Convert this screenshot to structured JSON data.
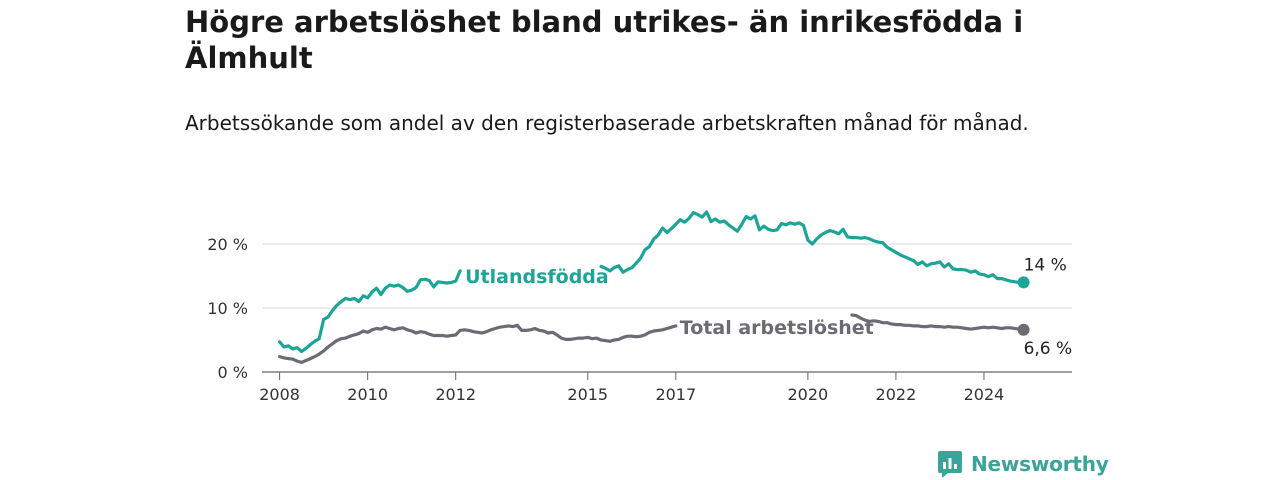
{
  "title": "Högre arbetslöshet bland utrikes- än inrikesfödda i Älmhult",
  "subtitle": "Arbetssökande som andel av den registerbaserade arbetskraften månad för månad.",
  "brand": {
    "name": "Newsworthy",
    "color": "#3aa39a"
  },
  "chart_data": {
    "type": "line",
    "y_ticks": [
      {
        "value": 0,
        "label": "0 %"
      },
      {
        "value": 10,
        "label": "10 %"
      },
      {
        "value": 20,
        "label": "20 %"
      }
    ],
    "x_ticks": [
      {
        "value": 2008,
        "label": "2008"
      },
      {
        "value": 2010,
        "label": "2010"
      },
      {
        "value": 2012,
        "label": "2012"
      },
      {
        "value": 2015,
        "label": "2015"
      },
      {
        "value": 2017,
        "label": "2017"
      },
      {
        "value": 2020,
        "label": "2020"
      },
      {
        "value": 2022,
        "label": "2022"
      },
      {
        "value": 2024,
        "label": "2024"
      }
    ],
    "xlim": [
      2007.6,
      2026.0
    ],
    "ylim": [
      0,
      20
    ],
    "grid": true,
    "series": [
      {
        "name": "Utlandsfödda",
        "color": "#1ba597",
        "end_label": "14 %",
        "points": [
          [
            2008.0,
            4.7
          ],
          [
            2008.1,
            3.9
          ],
          [
            2008.2,
            4.1
          ],
          [
            2008.3,
            3.6
          ],
          [
            2008.4,
            3.8
          ],
          [
            2008.5,
            3.2
          ],
          [
            2008.6,
            3.7
          ],
          [
            2008.7,
            4.3
          ],
          [
            2008.8,
            4.8
          ],
          [
            2008.9,
            5.2
          ],
          [
            2009.0,
            8.2
          ],
          [
            2009.1,
            8.6
          ],
          [
            2009.2,
            9.6
          ],
          [
            2009.3,
            10.4
          ],
          [
            2009.4,
            11.0
          ],
          [
            2009.5,
            11.5
          ],
          [
            2009.6,
            11.3
          ],
          [
            2009.7,
            11.5
          ],
          [
            2009.8,
            11.0
          ],
          [
            2009.9,
            11.9
          ],
          [
            2010.0,
            11.6
          ],
          [
            2010.1,
            12.5
          ],
          [
            2010.2,
            13.1
          ],
          [
            2010.3,
            12.1
          ],
          [
            2010.4,
            13.1
          ],
          [
            2010.5,
            13.6
          ],
          [
            2010.6,
            13.4
          ],
          [
            2010.7,
            13.6
          ],
          [
            2010.8,
            13.2
          ],
          [
            2010.9,
            12.6
          ],
          [
            2011.0,
            12.8
          ],
          [
            2011.1,
            13.2
          ],
          [
            2011.2,
            14.4
          ],
          [
            2011.3,
            14.5
          ],
          [
            2011.4,
            14.3
          ],
          [
            2011.5,
            13.3
          ],
          [
            2011.6,
            14.1
          ],
          [
            2011.7,
            14.0
          ],
          [
            2011.8,
            13.9
          ],
          [
            2011.9,
            14.0
          ],
          [
            2012.0,
            14.2
          ],
          [
            2012.1,
            15.8
          ],
          [
            2015.3,
            16.5
          ],
          [
            2015.4,
            16.2
          ],
          [
            2015.5,
            15.8
          ],
          [
            2015.6,
            16.3
          ],
          [
            2015.7,
            16.6
          ],
          [
            2015.8,
            15.6
          ],
          [
            2015.9,
            16.0
          ],
          [
            2016.0,
            16.3
          ],
          [
            2016.1,
            17.0
          ],
          [
            2016.2,
            17.8
          ],
          [
            2016.3,
            19.1
          ],
          [
            2016.4,
            19.6
          ],
          [
            2016.5,
            20.8
          ],
          [
            2016.6,
            21.4
          ],
          [
            2016.7,
            22.5
          ],
          [
            2016.8,
            21.8
          ],
          [
            2016.9,
            22.4
          ],
          [
            2017.0,
            23.1
          ],
          [
            2017.1,
            23.8
          ],
          [
            2017.2,
            23.4
          ],
          [
            2017.3,
            24.0
          ],
          [
            2017.4,
            24.9
          ],
          [
            2017.5,
            24.6
          ],
          [
            2017.6,
            24.2
          ],
          [
            2017.7,
            25.0
          ],
          [
            2017.8,
            23.5
          ],
          [
            2017.9,
            23.9
          ],
          [
            2018.0,
            23.4
          ],
          [
            2018.1,
            23.6
          ],
          [
            2018.2,
            23.0
          ],
          [
            2018.3,
            22.5
          ],
          [
            2018.4,
            22.0
          ],
          [
            2018.5,
            23.1
          ],
          [
            2018.6,
            24.3
          ],
          [
            2018.7,
            23.9
          ],
          [
            2018.8,
            24.4
          ],
          [
            2018.9,
            22.2
          ],
          [
            2019.0,
            22.8
          ],
          [
            2019.1,
            22.3
          ],
          [
            2019.2,
            22.1
          ],
          [
            2019.3,
            22.2
          ],
          [
            2019.4,
            23.2
          ],
          [
            2019.5,
            23.0
          ],
          [
            2019.6,
            23.3
          ],
          [
            2019.7,
            23.1
          ],
          [
            2019.8,
            23.3
          ],
          [
            2019.9,
            22.9
          ],
          [
            2020.0,
            20.6
          ],
          [
            2020.1,
            20.0
          ],
          [
            2020.2,
            20.8
          ],
          [
            2020.3,
            21.4
          ],
          [
            2020.4,
            21.8
          ],
          [
            2020.5,
            22.1
          ],
          [
            2020.6,
            21.9
          ],
          [
            2020.7,
            21.6
          ],
          [
            2020.8,
            22.3
          ],
          [
            2020.9,
            21.1
          ],
          [
            2021.0,
            21.0
          ],
          [
            2021.1,
            21.0
          ],
          [
            2021.2,
            20.9
          ],
          [
            2021.3,
            21.0
          ],
          [
            2021.4,
            20.8
          ],
          [
            2021.5,
            20.5
          ],
          [
            2021.6,
            20.3
          ],
          [
            2021.7,
            20.2
          ],
          [
            2021.8,
            19.5
          ],
          [
            2021.9,
            19.1
          ],
          [
            2022.0,
            18.7
          ],
          [
            2022.1,
            18.3
          ],
          [
            2022.2,
            18.0
          ],
          [
            2022.3,
            17.7
          ],
          [
            2022.4,
            17.4
          ],
          [
            2022.5,
            16.8
          ],
          [
            2022.6,
            17.2
          ],
          [
            2022.7,
            16.6
          ],
          [
            2022.8,
            16.9
          ],
          [
            2022.9,
            17.0
          ],
          [
            2023.0,
            17.2
          ],
          [
            2023.1,
            16.4
          ],
          [
            2023.2,
            16.9
          ],
          [
            2023.3,
            16.1
          ],
          [
            2023.4,
            16.0
          ],
          [
            2023.5,
            16.0
          ],
          [
            2023.6,
            15.9
          ],
          [
            2023.7,
            15.6
          ],
          [
            2023.8,
            15.8
          ],
          [
            2023.9,
            15.3
          ],
          [
            2024.0,
            15.2
          ],
          [
            2024.1,
            14.9
          ],
          [
            2024.2,
            15.2
          ],
          [
            2024.3,
            14.6
          ],
          [
            2024.4,
            14.6
          ],
          [
            2024.5,
            14.4
          ],
          [
            2024.6,
            14.2
          ],
          [
            2024.7,
            14.1
          ],
          [
            2024.8,
            14.0
          ],
          [
            2024.9,
            14.0
          ]
        ]
      },
      {
        "name": "Total arbetslöshet",
        "color": "#6c6a72",
        "end_label": "6,6 %",
        "points": [
          [
            2008.0,
            2.4
          ],
          [
            2008.1,
            2.2
          ],
          [
            2008.2,
            2.1
          ],
          [
            2008.3,
            2.0
          ],
          [
            2008.4,
            1.7
          ],
          [
            2008.5,
            1.5
          ],
          [
            2008.6,
            1.8
          ],
          [
            2008.7,
            2.1
          ],
          [
            2008.8,
            2.4
          ],
          [
            2008.9,
            2.8
          ],
          [
            2009.0,
            3.3
          ],
          [
            2009.1,
            3.9
          ],
          [
            2009.2,
            4.4
          ],
          [
            2009.3,
            4.9
          ],
          [
            2009.4,
            5.2
          ],
          [
            2009.5,
            5.3
          ],
          [
            2009.6,
            5.6
          ],
          [
            2009.7,
            5.8
          ],
          [
            2009.8,
            6.0
          ],
          [
            2009.9,
            6.4
          ],
          [
            2010.0,
            6.2
          ],
          [
            2010.1,
            6.6
          ],
          [
            2010.2,
            6.8
          ],
          [
            2010.3,
            6.7
          ],
          [
            2010.4,
            7.0
          ],
          [
            2010.5,
            6.8
          ],
          [
            2010.6,
            6.6
          ],
          [
            2010.7,
            6.8
          ],
          [
            2010.8,
            6.9
          ],
          [
            2010.9,
            6.6
          ],
          [
            2011.0,
            6.4
          ],
          [
            2011.1,
            6.1
          ],
          [
            2011.2,
            6.3
          ],
          [
            2011.3,
            6.2
          ],
          [
            2011.4,
            5.9
          ],
          [
            2011.5,
            5.7
          ],
          [
            2011.6,
            5.7
          ],
          [
            2011.7,
            5.7
          ],
          [
            2011.8,
            5.6
          ],
          [
            2011.9,
            5.7
          ],
          [
            2012.0,
            5.8
          ],
          [
            2012.1,
            6.5
          ],
          [
            2012.2,
            6.6
          ],
          [
            2012.3,
            6.5
          ],
          [
            2012.4,
            6.3
          ],
          [
            2012.5,
            6.2
          ],
          [
            2012.6,
            6.1
          ],
          [
            2012.7,
            6.3
          ],
          [
            2012.8,
            6.6
          ],
          [
            2012.9,
            6.8
          ],
          [
            2013.0,
            7.0
          ],
          [
            2013.1,
            7.1
          ],
          [
            2013.2,
            7.2
          ],
          [
            2013.3,
            7.1
          ],
          [
            2013.4,
            7.3
          ],
          [
            2013.5,
            6.5
          ],
          [
            2013.6,
            6.5
          ],
          [
            2013.7,
            6.6
          ],
          [
            2013.8,
            6.8
          ],
          [
            2013.9,
            6.5
          ],
          [
            2014.0,
            6.4
          ],
          [
            2014.1,
            6.1
          ],
          [
            2014.2,
            6.2
          ],
          [
            2014.3,
            5.8
          ],
          [
            2014.4,
            5.3
          ],
          [
            2014.5,
            5.1
          ],
          [
            2014.6,
            5.1
          ],
          [
            2014.7,
            5.2
          ],
          [
            2014.8,
            5.3
          ],
          [
            2014.9,
            5.3
          ],
          [
            2015.0,
            5.4
          ],
          [
            2015.1,
            5.2
          ],
          [
            2015.2,
            5.3
          ],
          [
            2015.3,
            5.0
          ],
          [
            2015.4,
            4.9
          ],
          [
            2015.5,
            4.8
          ],
          [
            2015.6,
            5.0
          ],
          [
            2015.7,
            5.1
          ],
          [
            2015.8,
            5.4
          ],
          [
            2015.9,
            5.6
          ],
          [
            2016.0,
            5.6
          ],
          [
            2016.1,
            5.5
          ],
          [
            2016.2,
            5.6
          ],
          [
            2016.3,
            5.8
          ],
          [
            2016.4,
            6.2
          ],
          [
            2016.5,
            6.4
          ],
          [
            2016.6,
            6.5
          ],
          [
            2016.7,
            6.6
          ],
          [
            2016.8,
            6.8
          ],
          [
            2016.9,
            7.0
          ],
          [
            2017.0,
            7.2
          ],
          [
            2021.0,
            8.9
          ],
          [
            2021.1,
            8.8
          ],
          [
            2021.2,
            8.4
          ],
          [
            2021.3,
            8.1
          ],
          [
            2021.4,
            7.9
          ],
          [
            2021.5,
            8.0
          ],
          [
            2021.6,
            7.9
          ],
          [
            2021.7,
            7.7
          ],
          [
            2021.8,
            7.7
          ],
          [
            2021.9,
            7.5
          ],
          [
            2022.0,
            7.4
          ],
          [
            2022.1,
            7.4
          ],
          [
            2022.2,
            7.3
          ],
          [
            2022.3,
            7.3
          ],
          [
            2022.4,
            7.2
          ],
          [
            2022.5,
            7.2
          ],
          [
            2022.6,
            7.1
          ],
          [
            2022.7,
            7.1
          ],
          [
            2022.8,
            7.2
          ],
          [
            2022.9,
            7.1
          ],
          [
            2023.0,
            7.1
          ],
          [
            2023.1,
            7.0
          ],
          [
            2023.2,
            7.1
          ],
          [
            2023.3,
            7.0
          ],
          [
            2023.4,
            7.0
          ],
          [
            2023.5,
            6.9
          ],
          [
            2023.6,
            6.8
          ],
          [
            2023.7,
            6.7
          ],
          [
            2023.8,
            6.8
          ],
          [
            2023.9,
            6.9
          ],
          [
            2024.0,
            7.0
          ],
          [
            2024.1,
            6.9
          ],
          [
            2024.2,
            7.0
          ],
          [
            2024.3,
            6.9
          ],
          [
            2024.4,
            6.8
          ],
          [
            2024.5,
            6.9
          ],
          [
            2024.6,
            6.9
          ],
          [
            2024.7,
            6.8
          ],
          [
            2024.8,
            6.7
          ],
          [
            2024.9,
            6.6
          ]
        ]
      }
    ]
  }
}
